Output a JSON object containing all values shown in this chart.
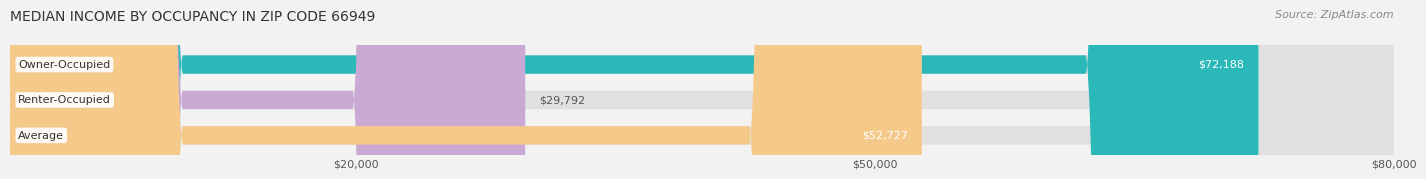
{
  "title": "MEDIAN INCOME BY OCCUPANCY IN ZIP CODE 66949",
  "source": "Source: ZipAtlas.com",
  "categories": [
    "Owner-Occupied",
    "Renter-Occupied",
    "Average"
  ],
  "values": [
    72188,
    29792,
    52727
  ],
  "bar_colors": [
    "#2ab8b8",
    "#c9a8d4",
    "#f5c98a"
  ],
  "value_labels": [
    "$72,188",
    "$29,792",
    "$52,727"
  ],
  "xlim": [
    0,
    80000
  ],
  "xticks": [
    20000,
    50000,
    80000
  ],
  "xtick_labels": [
    "$20,000",
    "$50,000",
    "$80,000"
  ],
  "background_color": "#f2f2f2",
  "bar_bg_color": "#e0e0e0",
  "title_fontsize": 10,
  "source_fontsize": 8,
  "bar_height": 0.52,
  "fig_width": 14.06,
  "fig_height": 1.96
}
